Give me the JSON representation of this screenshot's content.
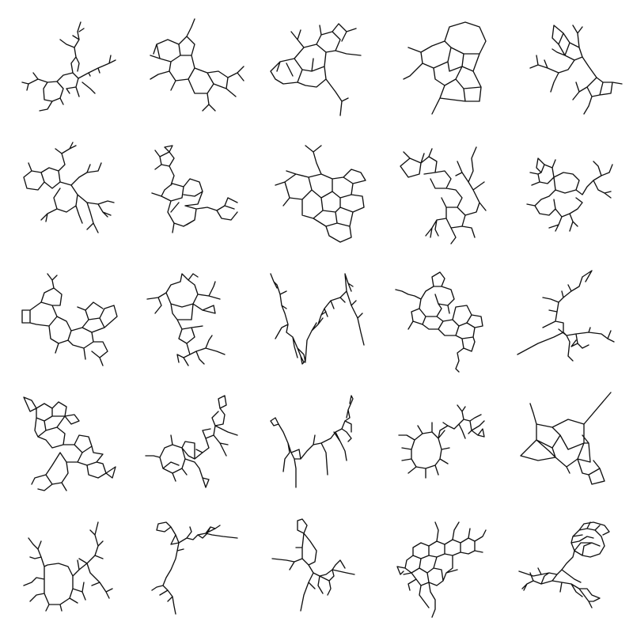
{
  "figure": {
    "rows": 5,
    "columns": 5,
    "stroke_color": "#111111",
    "background_color": "#ffffff",
    "cells": [
      {
        "row": 1,
        "col": 1
      },
      {
        "row": 1,
        "col": 2
      },
      {
        "row": 1,
        "col": 3
      },
      {
        "row": 1,
        "col": 4
      },
      {
        "row": 1,
        "col": 5
      },
      {
        "row": 2,
        "col": 1
      },
      {
        "row": 2,
        "col": 2
      },
      {
        "row": 2,
        "col": 3
      },
      {
        "row": 2,
        "col": 4
      },
      {
        "row": 2,
        "col": 5
      },
      {
        "row": 3,
        "col": 1
      },
      {
        "row": 3,
        "col": 2
      },
      {
        "row": 3,
        "col": 3
      },
      {
        "row": 3,
        "col": 4
      },
      {
        "row": 3,
        "col": 5
      },
      {
        "row": 4,
        "col": 1
      },
      {
        "row": 4,
        "col": 2
      },
      {
        "row": 4,
        "col": 3
      },
      {
        "row": 4,
        "col": 4
      },
      {
        "row": 4,
        "col": 5
      },
      {
        "row": 5,
        "col": 1
      },
      {
        "row": 5,
        "col": 2
      },
      {
        "row": 5,
        "col": 3
      },
      {
        "row": 5,
        "col": 4
      },
      {
        "row": 5,
        "col": 5
      }
    ]
  }
}
